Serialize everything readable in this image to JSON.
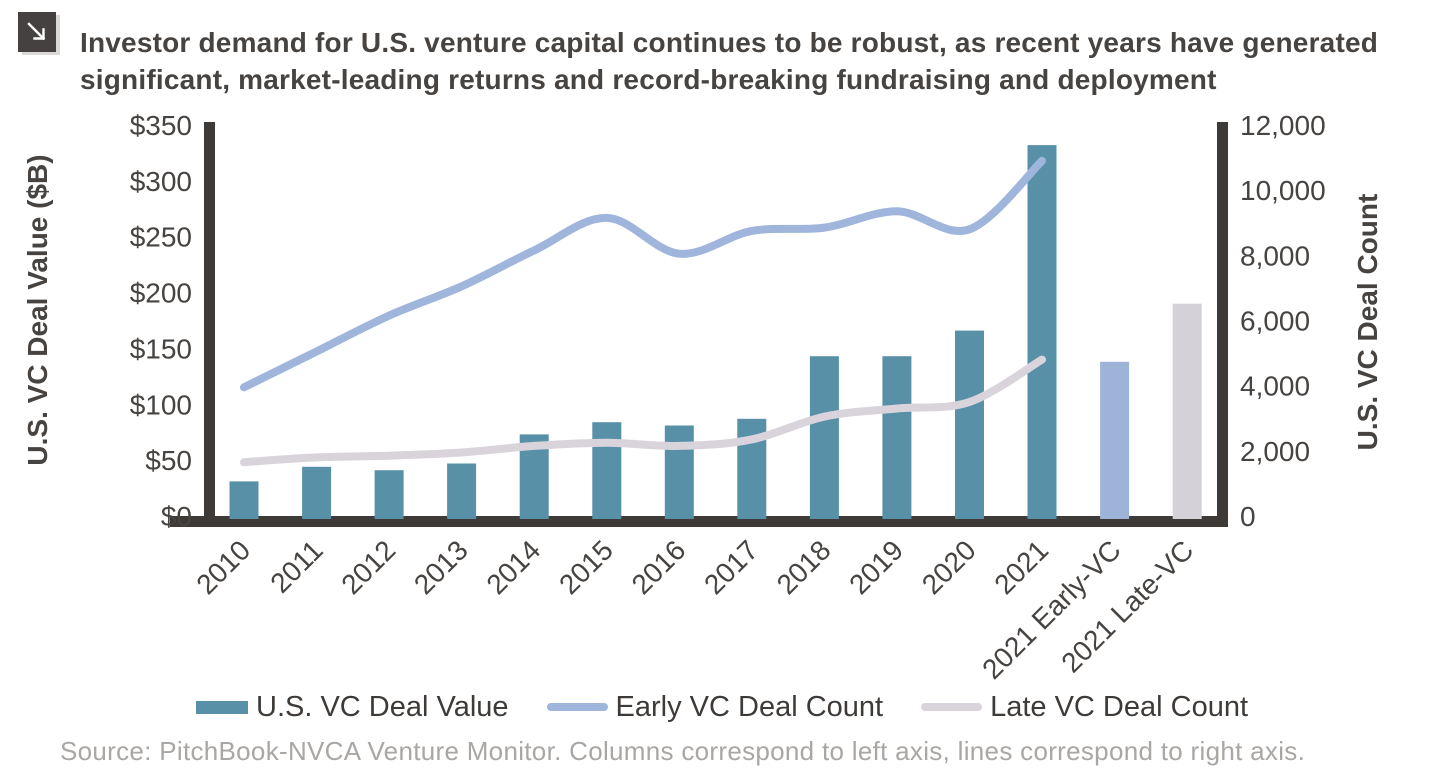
{
  "header": {
    "title_lines": [
      "Investor demand for U.S. venture capital continues to be robust, as recent years have generated",
      "significant, market-leading returns and record-breaking fundraising and deployment"
    ],
    "corner_icon": "arrow-down-right-icon"
  },
  "footer": {
    "source": "Source: PitchBook-NVCA Venture Monitor. Columns correspond to left axis, lines correspond to right axis."
  },
  "colors": {
    "deal_value_bar": "#5890a8",
    "early_vc_bar": "#9db3d7",
    "late_vc_bar": "#d5d1d8",
    "early_vc_line": "#9fb5db",
    "late_vc_line": "#d9d4dc",
    "axis": "#3e3a37",
    "text_dark": "#474340",
    "source_text": "#a9a6a3",
    "icon_bg": "#454140"
  },
  "chart_data": {
    "type": "bar",
    "subtype": "combo-bar-line-dual-axis",
    "categories": [
      "2010",
      "2011",
      "2012",
      "2013",
      "2014",
      "2015",
      "2016",
      "2017",
      "2018",
      "2019",
      "2020",
      "2021",
      "2021 Early-VC",
      "2021 Late-VC"
    ],
    "bars": {
      "name": "U.S. VC Deal Value",
      "axis": "left",
      "values_billions_usd": [
        31,
        44,
        41,
        47,
        73,
        84,
        81,
        87,
        143,
        143,
        166,
        332,
        138,
        190
      ],
      "color_keys": [
        "deal_value_bar",
        "deal_value_bar",
        "deal_value_bar",
        "deal_value_bar",
        "deal_value_bar",
        "deal_value_bar",
        "deal_value_bar",
        "deal_value_bar",
        "deal_value_bar",
        "deal_value_bar",
        "deal_value_bar",
        "deal_value_bar",
        "early_vc_bar",
        "late_vc_bar"
      ]
    },
    "series": [
      {
        "name": "Early VC Deal Count",
        "type": "line",
        "axis": "right",
        "x": [
          "2010",
          "2011",
          "2012",
          "2013",
          "2014",
          "2015",
          "2016",
          "2017",
          "2018",
          "2019",
          "2020",
          "2021"
        ],
        "values": [
          3950,
          5050,
          6150,
          7050,
          8150,
          9150,
          8050,
          8750,
          8850,
          9350,
          8800,
          10900
        ],
        "color_key": "early_vc_line"
      },
      {
        "name": "Late VC Deal Count",
        "type": "line",
        "axis": "right",
        "x": [
          "2010",
          "2011",
          "2012",
          "2013",
          "2014",
          "2015",
          "2016",
          "2017",
          "2018",
          "2019",
          "2020",
          "2021"
        ],
        "values": [
          1650,
          1800,
          1850,
          1950,
          2150,
          2250,
          2150,
          2350,
          3050,
          3300,
          3500,
          4800
        ],
        "color_key": "late_vc_line"
      }
    ],
    "left_axis": {
      "title": "U.S. VC Deal Value ($B)",
      "range": [
        0,
        350
      ],
      "tick_values": [
        0,
        50,
        100,
        150,
        200,
        250,
        300,
        350
      ],
      "tick_labels": [
        "$0",
        "$50",
        "$100",
        "$150",
        "$200",
        "$250",
        "$300",
        "$350"
      ]
    },
    "right_axis": {
      "title": "U.S. VC Deal Count",
      "range": [
        0,
        12000
      ],
      "tick_values": [
        0,
        2000,
        4000,
        6000,
        8000,
        10000,
        12000
      ],
      "tick_labels": [
        "0",
        "2,000",
        "4,000",
        "6,000",
        "8,000",
        "10,000",
        "12,000"
      ]
    },
    "legend": [
      {
        "label": "U.S. VC Deal Value",
        "swatch": "bar",
        "color_key": "deal_value_bar"
      },
      {
        "label": "Early VC Deal Count",
        "swatch": "line",
        "color_key": "early_vc_line"
      },
      {
        "label": "Late VC Deal Count",
        "swatch": "line",
        "color_key": "late_vc_line"
      }
    ],
    "grid": false,
    "legend_position": "bottom"
  }
}
